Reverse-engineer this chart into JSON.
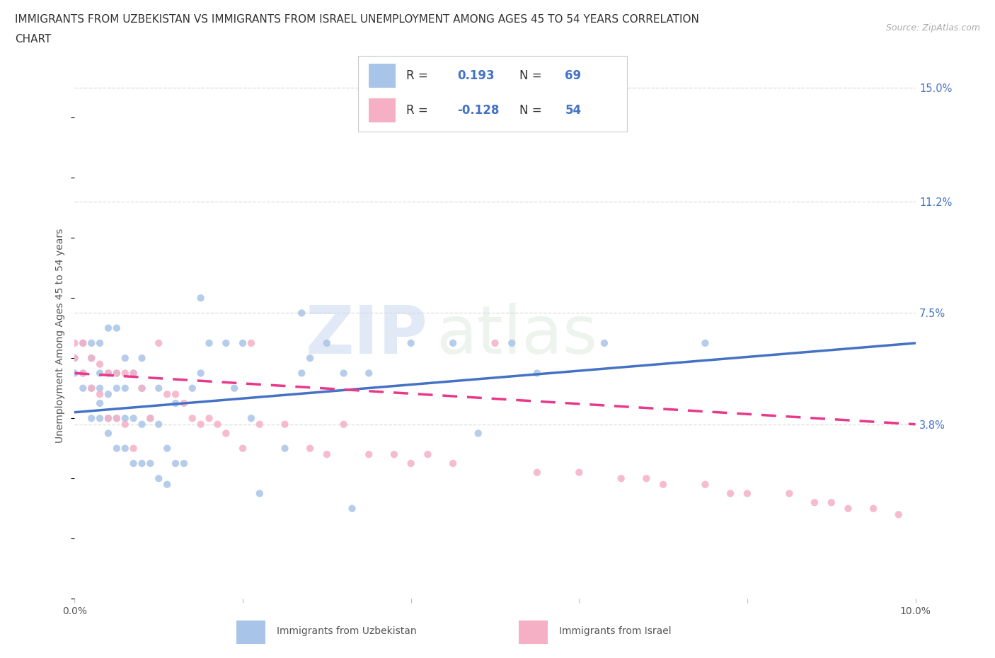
{
  "title_line1": "IMMIGRANTS FROM UZBEKISTAN VS IMMIGRANTS FROM ISRAEL UNEMPLOYMENT AMONG AGES 45 TO 54 YEARS CORRELATION",
  "title_line2": "CHART",
  "source_text": "Source: ZipAtlas.com",
  "ylabel": "Unemployment Among Ages 45 to 54 years",
  "xlim": [
    0.0,
    0.1
  ],
  "ylim": [
    -0.02,
    0.155
  ],
  "ytick_vals": [
    0.038,
    0.075,
    0.112,
    0.15
  ],
  "ytick_labels": [
    "3.8%",
    "7.5%",
    "11.2%",
    "15.0%"
  ],
  "xtick_vals": [
    0.0,
    0.02,
    0.04,
    0.06,
    0.08,
    0.1
  ],
  "xtick_labels": [
    "0.0%",
    "",
    "",
    "",
    "",
    "10.0%"
  ],
  "R_uzbekistan": 0.193,
  "N_uzbekistan": 69,
  "R_israel": -0.128,
  "N_israel": 54,
  "color_uzbekistan": "#a8c4e8",
  "color_israel": "#f5b0c5",
  "trendline_uzbekistan_color": "#4472c4",
  "trendline_israel_color": "#e8388a",
  "legend_label_uzbekistan": "Immigrants from Uzbekistan",
  "legend_label_israel": "Immigrants from Israel",
  "watermark_line1": "ZIP",
  "watermark_line2": "atlas",
  "background_color": "#ffffff",
  "scatter_uzbekistan_x": [
    0.0,
    0.0,
    0.001,
    0.001,
    0.001,
    0.002,
    0.002,
    0.002,
    0.002,
    0.003,
    0.003,
    0.003,
    0.003,
    0.003,
    0.004,
    0.004,
    0.004,
    0.004,
    0.004,
    0.005,
    0.005,
    0.005,
    0.005,
    0.005,
    0.006,
    0.006,
    0.006,
    0.006,
    0.007,
    0.007,
    0.007,
    0.008,
    0.008,
    0.008,
    0.008,
    0.009,
    0.009,
    0.01,
    0.01,
    0.01,
    0.011,
    0.011,
    0.012,
    0.012,
    0.013,
    0.014,
    0.015,
    0.015,
    0.016,
    0.018,
    0.019,
    0.02,
    0.021,
    0.022,
    0.025,
    0.027,
    0.027,
    0.028,
    0.03,
    0.032,
    0.033,
    0.035,
    0.04,
    0.045,
    0.048,
    0.052,
    0.055,
    0.063,
    0.075
  ],
  "scatter_uzbekistan_y": [
    0.055,
    0.06,
    0.05,
    0.055,
    0.065,
    0.04,
    0.05,
    0.06,
    0.065,
    0.04,
    0.045,
    0.05,
    0.055,
    0.065,
    0.035,
    0.04,
    0.048,
    0.055,
    0.07,
    0.03,
    0.04,
    0.05,
    0.055,
    0.07,
    0.03,
    0.04,
    0.05,
    0.06,
    0.025,
    0.04,
    0.055,
    0.025,
    0.038,
    0.05,
    0.06,
    0.025,
    0.04,
    0.02,
    0.038,
    0.05,
    0.018,
    0.03,
    0.025,
    0.045,
    0.025,
    0.05,
    0.055,
    0.08,
    0.065,
    0.065,
    0.05,
    0.065,
    0.04,
    0.015,
    0.03,
    0.055,
    0.075,
    0.06,
    0.065,
    0.055,
    0.01,
    0.055,
    0.065,
    0.065,
    0.035,
    0.065,
    0.055,
    0.065,
    0.065
  ],
  "scatter_israel_x": [
    0.0,
    0.0,
    0.001,
    0.001,
    0.002,
    0.002,
    0.003,
    0.003,
    0.004,
    0.004,
    0.005,
    0.005,
    0.006,
    0.006,
    0.007,
    0.007,
    0.008,
    0.009,
    0.01,
    0.011,
    0.012,
    0.013,
    0.014,
    0.015,
    0.016,
    0.017,
    0.018,
    0.02,
    0.021,
    0.022,
    0.025,
    0.028,
    0.03,
    0.032,
    0.035,
    0.038,
    0.04,
    0.042,
    0.045,
    0.05,
    0.055,
    0.06,
    0.065,
    0.068,
    0.07,
    0.075,
    0.078,
    0.08,
    0.085,
    0.088,
    0.09,
    0.092,
    0.095,
    0.098
  ],
  "scatter_israel_y": [
    0.06,
    0.065,
    0.055,
    0.065,
    0.05,
    0.06,
    0.048,
    0.058,
    0.04,
    0.055,
    0.04,
    0.055,
    0.038,
    0.055,
    0.03,
    0.055,
    0.05,
    0.04,
    0.065,
    0.048,
    0.048,
    0.045,
    0.04,
    0.038,
    0.04,
    0.038,
    0.035,
    0.03,
    0.065,
    0.038,
    0.038,
    0.03,
    0.028,
    0.038,
    0.028,
    0.028,
    0.025,
    0.028,
    0.025,
    0.065,
    0.022,
    0.022,
    0.02,
    0.02,
    0.018,
    0.018,
    0.015,
    0.015,
    0.015,
    0.012,
    0.012,
    0.01,
    0.01,
    0.008
  ]
}
